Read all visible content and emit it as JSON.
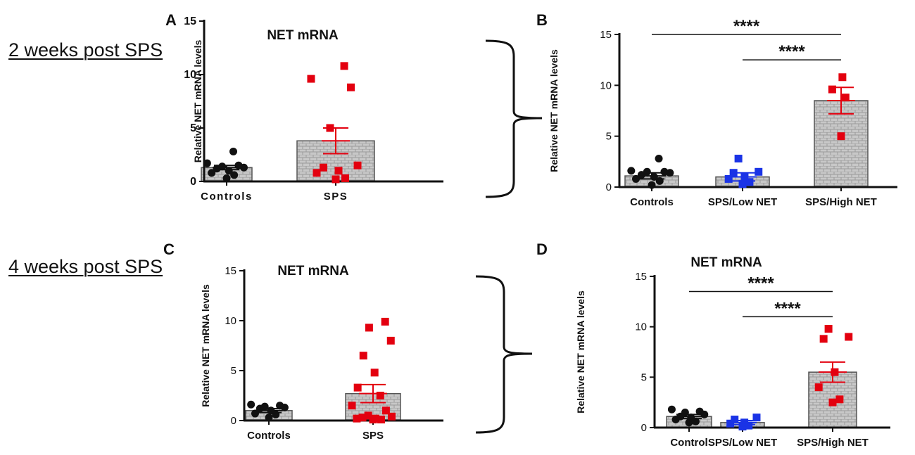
{
  "row_labels": {
    "top": "2 weeks post SPS",
    "bottom": "4 weeks post SPS"
  },
  "colors": {
    "controls": "#111111",
    "sps_high": "#e3000f",
    "sps_low": "#1a33e6",
    "bar_fill": "#c8c8c8",
    "axis": "#111111"
  },
  "chart_data": [
    {
      "panel": "A",
      "type": "bar",
      "title": "NET mRNA",
      "ylabel": "Relative NET mRNA levels",
      "ylim": [
        0,
        15
      ],
      "yticks": [
        "0",
        "5",
        "10",
        "15"
      ],
      "categories": [
        "Controls",
        "SPS"
      ],
      "means": [
        1.3,
        3.8
      ],
      "sem": [
        0.2,
        1.2
      ],
      "points": [
        [
          0.3,
          0.6,
          0.8,
          1.0,
          1.2,
          1.3,
          1.4,
          1.5,
          1.7,
          2.8
        ],
        [
          0.2,
          0.3,
          0.8,
          1.0,
          1.3,
          1.5,
          5.0,
          8.8,
          9.6,
          10.8
        ]
      ],
      "point_colors": [
        "black",
        "red"
      ],
      "significance": []
    },
    {
      "panel": "B",
      "type": "bar",
      "title": "",
      "ylabel": "Relative NET mRNA levels",
      "ylim": [
        0,
        15
      ],
      "yticks": [
        "0",
        "5",
        "10",
        "15"
      ],
      "categories": [
        "Controls",
        "SPS/Low NET",
        "SPS/High NET"
      ],
      "means": [
        1.1,
        1.0,
        8.5
      ],
      "sem": [
        0.3,
        0.4,
        1.3
      ],
      "points": [
        [
          0.2,
          0.6,
          0.8,
          1.0,
          1.2,
          1.4,
          1.5,
          1.5,
          1.6,
          2.8
        ],
        [
          0.3,
          0.5,
          0.8,
          1.0,
          1.4,
          1.5,
          2.8
        ],
        [
          5.0,
          8.8,
          9.6,
          10.8
        ]
      ],
      "point_colors": [
        "black",
        "blue",
        "red"
      ],
      "significance": [
        {
          "from": 0,
          "to": 2,
          "label": "****",
          "y": 15
        },
        {
          "from": 1,
          "to": 2,
          "label": "****",
          "y": 12.5
        }
      ]
    },
    {
      "panel": "C",
      "type": "bar",
      "title": "NET mRNA",
      "ylabel": "Relative NET mRNA levels",
      "ylim": [
        0,
        15
      ],
      "yticks": [
        "0",
        "5",
        "10",
        "15"
      ],
      "categories": [
        "Controls",
        "SPS"
      ],
      "means": [
        1.0,
        2.7
      ],
      "sem": [
        0.2,
        0.9
      ],
      "points": [
        [
          0.3,
          0.6,
          0.7,
          1.0,
          1.2,
          1.3,
          1.4,
          1.5,
          1.6
        ],
        [
          0.1,
          0.1,
          0.2,
          0.2,
          0.3,
          0.4,
          0.5,
          1.0,
          1.5,
          2.5,
          3.3,
          4.8,
          6.5,
          8.0,
          9.3,
          9.9
        ]
      ],
      "point_colors": [
        "black",
        "red"
      ],
      "significance": []
    },
    {
      "panel": "D",
      "type": "bar",
      "title": "NET mRNA",
      "ylabel": "Relative NET mRNA levels",
      "ylim": [
        0,
        15
      ],
      "yticks": [
        "0",
        "5",
        "10",
        "15"
      ],
      "categories": [
        "Control",
        "SPS/Low NET",
        "SPS/High NET"
      ],
      "means": [
        1.1,
        0.5,
        5.5
      ],
      "sem": [
        0.2,
        0.2,
        1.0
      ],
      "points": [
        [
          0.5,
          0.6,
          0.8,
          1.0,
          1.1,
          1.3,
          1.5,
          1.6,
          1.8
        ],
        [
          0.1,
          0.2,
          0.4,
          0.5,
          0.8,
          1.0
        ],
        [
          2.5,
          2.8,
          4.0,
          5.5,
          8.8,
          9.0,
          9.8
        ]
      ],
      "point_colors": [
        "black",
        "blue",
        "red"
      ],
      "significance": [
        {
          "from": 0,
          "to": 2,
          "label": "****",
          "y": 13.5
        },
        {
          "from": 1,
          "to": 2,
          "label": "****",
          "y": 11
        }
      ]
    }
  ]
}
